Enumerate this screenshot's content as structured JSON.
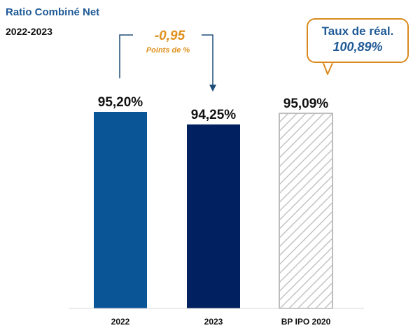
{
  "chart_data": {
    "type": "bar",
    "title": "Ratio Combiné Net",
    "subtitle": "2022-2023",
    "categories": [
      "2022",
      "2023",
      "BP IPO 2020"
    ],
    "values": [
      95.2,
      94.25,
      95.09
    ],
    "value_labels": [
      "95,20%",
      "94,25%",
      "95,09%"
    ],
    "colors": [
      "#0a5596",
      "#002060",
      "hatched-gray"
    ],
    "xlabel": "",
    "ylabel": "",
    "grid": false,
    "legend": "none",
    "annotations": {
      "difference": "-0,95",
      "difference_unit": "Points de %",
      "callout_label": "Taux de réal.",
      "callout_value": "100,89%"
    }
  }
}
